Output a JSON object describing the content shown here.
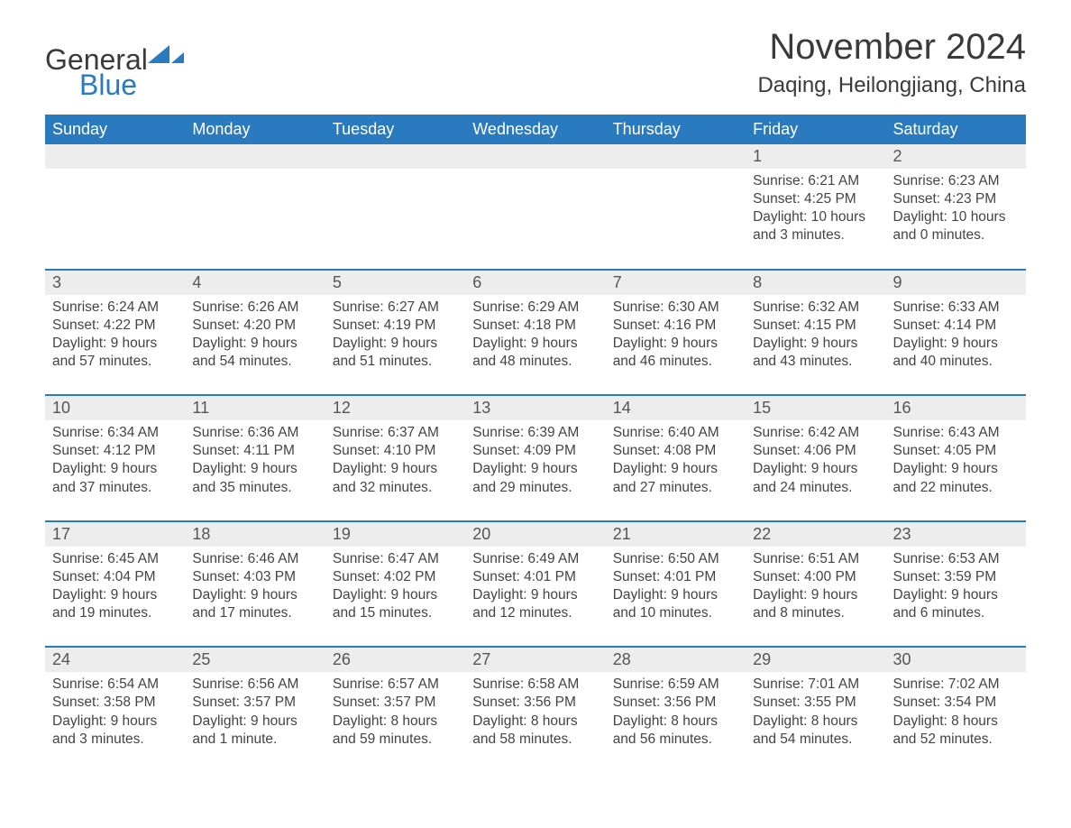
{
  "brand": {
    "word1": "General",
    "word2": "Blue",
    "color_word1": "#3a3a3a",
    "color_word2": "#2a7ac0",
    "shape_color": "#2a7ac0"
  },
  "title": "November 2024",
  "location": "Daqing, Heilongjiang, China",
  "colors": {
    "header_bg": "#2a7ac0",
    "header_text": "#ffffff",
    "daynum_bg": "#ededed",
    "week_border": "#2a7ac0",
    "body_text": "#444444",
    "page_bg": "#ffffff"
  },
  "fonts": {
    "title_size": 40,
    "location_size": 24,
    "weekday_size": 18,
    "daynum_size": 18,
    "body_size": 15.5,
    "logo_size": 32
  },
  "weekdays": [
    "Sunday",
    "Monday",
    "Tuesday",
    "Wednesday",
    "Thursday",
    "Friday",
    "Saturday"
  ],
  "weeks": [
    {
      "days": [
        {
          "empty": true
        },
        {
          "empty": true
        },
        {
          "empty": true
        },
        {
          "empty": true
        },
        {
          "empty": true
        },
        {
          "num": "1",
          "sunrise": "Sunrise: 6:21 AM",
          "sunset": "Sunset: 4:25 PM",
          "day1": "Daylight: 10 hours",
          "day2": "and 3 minutes."
        },
        {
          "num": "2",
          "sunrise": "Sunrise: 6:23 AM",
          "sunset": "Sunset: 4:23 PM",
          "day1": "Daylight: 10 hours",
          "day2": "and 0 minutes."
        }
      ]
    },
    {
      "days": [
        {
          "num": "3",
          "sunrise": "Sunrise: 6:24 AM",
          "sunset": "Sunset: 4:22 PM",
          "day1": "Daylight: 9 hours",
          "day2": "and 57 minutes."
        },
        {
          "num": "4",
          "sunrise": "Sunrise: 6:26 AM",
          "sunset": "Sunset: 4:20 PM",
          "day1": "Daylight: 9 hours",
          "day2": "and 54 minutes."
        },
        {
          "num": "5",
          "sunrise": "Sunrise: 6:27 AM",
          "sunset": "Sunset: 4:19 PM",
          "day1": "Daylight: 9 hours",
          "day2": "and 51 minutes."
        },
        {
          "num": "6",
          "sunrise": "Sunrise: 6:29 AM",
          "sunset": "Sunset: 4:18 PM",
          "day1": "Daylight: 9 hours",
          "day2": "and 48 minutes."
        },
        {
          "num": "7",
          "sunrise": "Sunrise: 6:30 AM",
          "sunset": "Sunset: 4:16 PM",
          "day1": "Daylight: 9 hours",
          "day2": "and 46 minutes."
        },
        {
          "num": "8",
          "sunrise": "Sunrise: 6:32 AM",
          "sunset": "Sunset: 4:15 PM",
          "day1": "Daylight: 9 hours",
          "day2": "and 43 minutes."
        },
        {
          "num": "9",
          "sunrise": "Sunrise: 6:33 AM",
          "sunset": "Sunset: 4:14 PM",
          "day1": "Daylight: 9 hours",
          "day2": "and 40 minutes."
        }
      ]
    },
    {
      "days": [
        {
          "num": "10",
          "sunrise": "Sunrise: 6:34 AM",
          "sunset": "Sunset: 4:12 PM",
          "day1": "Daylight: 9 hours",
          "day2": "and 37 minutes."
        },
        {
          "num": "11",
          "sunrise": "Sunrise: 6:36 AM",
          "sunset": "Sunset: 4:11 PM",
          "day1": "Daylight: 9 hours",
          "day2": "and 35 minutes."
        },
        {
          "num": "12",
          "sunrise": "Sunrise: 6:37 AM",
          "sunset": "Sunset: 4:10 PM",
          "day1": "Daylight: 9 hours",
          "day2": "and 32 minutes."
        },
        {
          "num": "13",
          "sunrise": "Sunrise: 6:39 AM",
          "sunset": "Sunset: 4:09 PM",
          "day1": "Daylight: 9 hours",
          "day2": "and 29 minutes."
        },
        {
          "num": "14",
          "sunrise": "Sunrise: 6:40 AM",
          "sunset": "Sunset: 4:08 PM",
          "day1": "Daylight: 9 hours",
          "day2": "and 27 minutes."
        },
        {
          "num": "15",
          "sunrise": "Sunrise: 6:42 AM",
          "sunset": "Sunset: 4:06 PM",
          "day1": "Daylight: 9 hours",
          "day2": "and 24 minutes."
        },
        {
          "num": "16",
          "sunrise": "Sunrise: 6:43 AM",
          "sunset": "Sunset: 4:05 PM",
          "day1": "Daylight: 9 hours",
          "day2": "and 22 minutes."
        }
      ]
    },
    {
      "days": [
        {
          "num": "17",
          "sunrise": "Sunrise: 6:45 AM",
          "sunset": "Sunset: 4:04 PM",
          "day1": "Daylight: 9 hours",
          "day2": "and 19 minutes."
        },
        {
          "num": "18",
          "sunrise": "Sunrise: 6:46 AM",
          "sunset": "Sunset: 4:03 PM",
          "day1": "Daylight: 9 hours",
          "day2": "and 17 minutes."
        },
        {
          "num": "19",
          "sunrise": "Sunrise: 6:47 AM",
          "sunset": "Sunset: 4:02 PM",
          "day1": "Daylight: 9 hours",
          "day2": "and 15 minutes."
        },
        {
          "num": "20",
          "sunrise": "Sunrise: 6:49 AM",
          "sunset": "Sunset: 4:01 PM",
          "day1": "Daylight: 9 hours",
          "day2": "and 12 minutes."
        },
        {
          "num": "21",
          "sunrise": "Sunrise: 6:50 AM",
          "sunset": "Sunset: 4:01 PM",
          "day1": "Daylight: 9 hours",
          "day2": "and 10 minutes."
        },
        {
          "num": "22",
          "sunrise": "Sunrise: 6:51 AM",
          "sunset": "Sunset: 4:00 PM",
          "day1": "Daylight: 9 hours",
          "day2": "and 8 minutes."
        },
        {
          "num": "23",
          "sunrise": "Sunrise: 6:53 AM",
          "sunset": "Sunset: 3:59 PM",
          "day1": "Daylight: 9 hours",
          "day2": "and 6 minutes."
        }
      ]
    },
    {
      "days": [
        {
          "num": "24",
          "sunrise": "Sunrise: 6:54 AM",
          "sunset": "Sunset: 3:58 PM",
          "day1": "Daylight: 9 hours",
          "day2": "and 3 minutes."
        },
        {
          "num": "25",
          "sunrise": "Sunrise: 6:56 AM",
          "sunset": "Sunset: 3:57 PM",
          "day1": "Daylight: 9 hours",
          "day2": "and 1 minute."
        },
        {
          "num": "26",
          "sunrise": "Sunrise: 6:57 AM",
          "sunset": "Sunset: 3:57 PM",
          "day1": "Daylight: 8 hours",
          "day2": "and 59 minutes."
        },
        {
          "num": "27",
          "sunrise": "Sunrise: 6:58 AM",
          "sunset": "Sunset: 3:56 PM",
          "day1": "Daylight: 8 hours",
          "day2": "and 58 minutes."
        },
        {
          "num": "28",
          "sunrise": "Sunrise: 6:59 AM",
          "sunset": "Sunset: 3:56 PM",
          "day1": "Daylight: 8 hours",
          "day2": "and 56 minutes."
        },
        {
          "num": "29",
          "sunrise": "Sunrise: 7:01 AM",
          "sunset": "Sunset: 3:55 PM",
          "day1": "Daylight: 8 hours",
          "day2": "and 54 minutes."
        },
        {
          "num": "30",
          "sunrise": "Sunrise: 7:02 AM",
          "sunset": "Sunset: 3:54 PM",
          "day1": "Daylight: 8 hours",
          "day2": "and 52 minutes."
        }
      ]
    }
  ]
}
